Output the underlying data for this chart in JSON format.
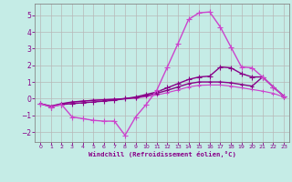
{
  "xlabel": "Windchill (Refroidissement éolien,°C)",
  "xlim": [
    -0.5,
    23.5
  ],
  "ylim": [
    -2.6,
    5.7
  ],
  "yticks": [
    -2,
    -1,
    0,
    1,
    2,
    3,
    4,
    5
  ],
  "xticks": [
    0,
    1,
    2,
    3,
    4,
    5,
    6,
    7,
    8,
    9,
    10,
    11,
    12,
    13,
    14,
    15,
    16,
    17,
    18,
    19,
    20,
    21,
    22,
    23
  ],
  "bg": "#c5ece6",
  "grid_color": "#b8b8b8",
  "color1": "#cc44cc",
  "color2": "#880088",
  "s1y": [
    -0.3,
    -0.5,
    -0.35,
    -1.1,
    -1.2,
    -1.3,
    -1.35,
    -1.35,
    -2.2,
    -1.1,
    -0.35,
    0.5,
    1.9,
    3.3,
    4.75,
    5.15,
    5.2,
    4.3,
    3.1,
    1.9,
    1.85,
    1.3,
    0.7,
    0.15
  ],
  "s2y": [
    -0.3,
    -0.5,
    -0.35,
    -0.3,
    -0.25,
    -0.2,
    -0.15,
    -0.1,
    0.0,
    0.1,
    0.25,
    0.4,
    0.65,
    0.9,
    1.15,
    1.3,
    1.35,
    1.9,
    1.85,
    1.5,
    1.3,
    1.3,
    0.7,
    0.15
  ],
  "s3y": [
    -0.3,
    -0.45,
    -0.3,
    -0.2,
    -0.15,
    -0.1,
    -0.07,
    -0.04,
    0.0,
    0.05,
    0.18,
    0.32,
    0.5,
    0.7,
    0.9,
    1.0,
    1.0,
    1.0,
    0.95,
    0.85,
    0.75,
    1.3,
    0.7,
    0.15
  ],
  "s4y": [
    -0.3,
    -0.45,
    -0.32,
    -0.22,
    -0.15,
    -0.1,
    -0.06,
    -0.03,
    0.0,
    0.04,
    0.12,
    0.22,
    0.36,
    0.52,
    0.7,
    0.8,
    0.82,
    0.82,
    0.75,
    0.65,
    0.55,
    0.45,
    0.32,
    0.1
  ],
  "lw": 1.0,
  "ms": 2.5
}
